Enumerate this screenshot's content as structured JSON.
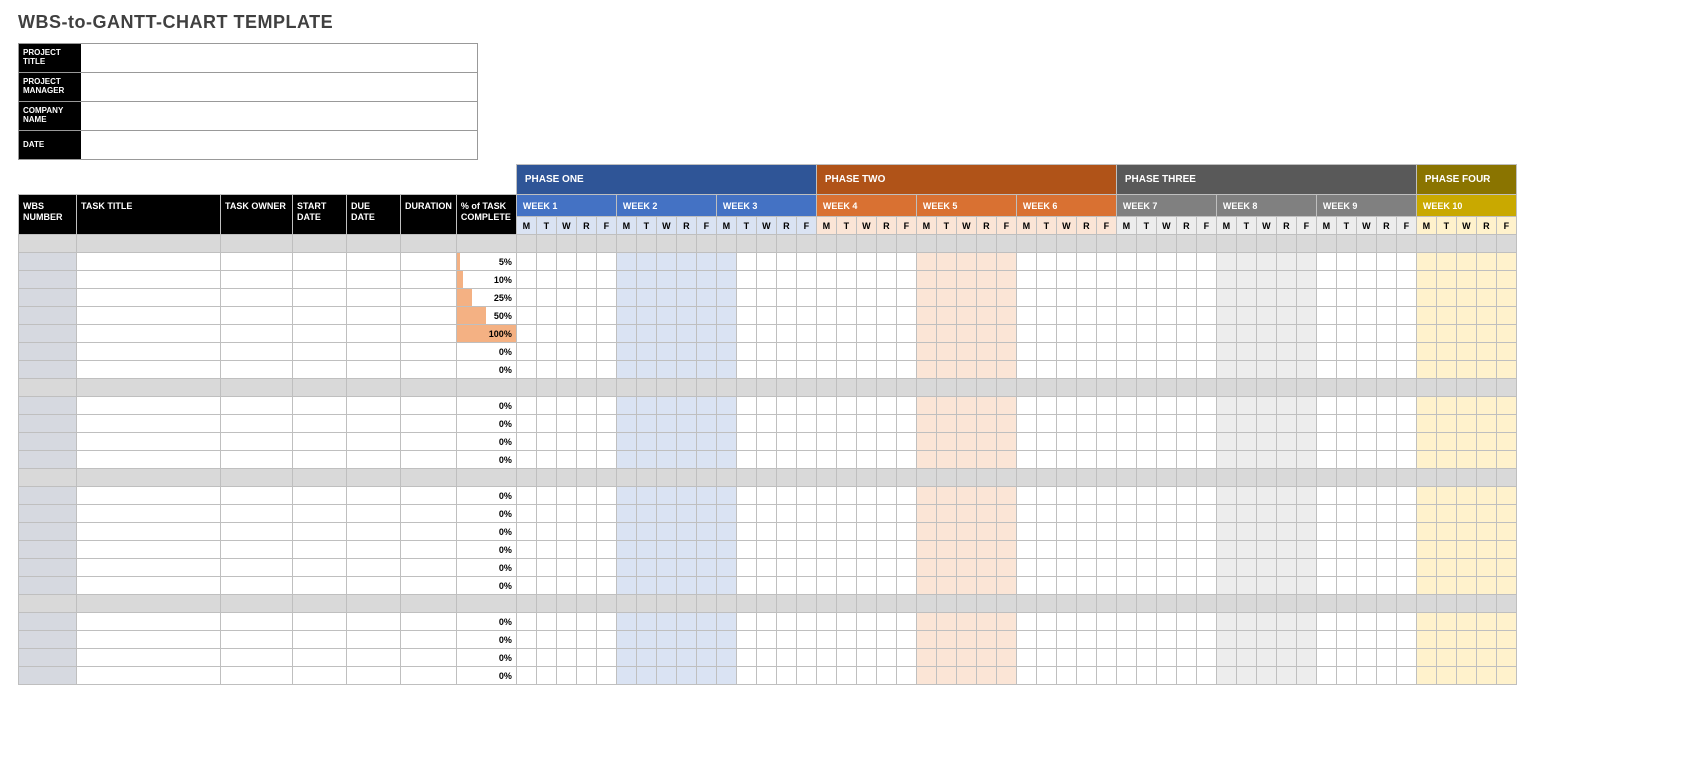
{
  "title": "WBS-to-GANTT-CHART TEMPLATE",
  "meta_labels": {
    "project_title": "PROJECT TITLE",
    "project_manager": "PROJECT MANAGER",
    "company_name": "COMPANY NAME",
    "date": "DATE"
  },
  "meta_values": {
    "project_title": "",
    "project_manager": "",
    "company_name": "",
    "date": ""
  },
  "columns": {
    "wbs": "WBS NUMBER",
    "task_title": "TASK TITLE",
    "task_owner": "TASK OWNER",
    "start_date": "START DATE",
    "due_date": "DUE DATE",
    "duration": "DURATION",
    "pct": "% of TASK COMPLETE"
  },
  "phases": [
    {
      "label": "PHASE ONE",
      "bg": "#2f5597",
      "weeks": [
        {
          "label": "WEEK 1",
          "bg": "#4472c4",
          "day_bg": "#dae3f3",
          "shade": []
        },
        {
          "label": "WEEK 2",
          "bg": "#4472c4",
          "day_bg": "#dae3f3",
          "shade": [
            0,
            1,
            2,
            3,
            4
          ]
        },
        {
          "label": "WEEK 3",
          "bg": "#4472c4",
          "day_bg": "#dae3f3",
          "shade": [
            0
          ]
        }
      ]
    },
    {
      "label": "PHASE TWO",
      "bg": "#b05318",
      "weeks": [
        {
          "label": "WEEK 4",
          "bg": "#d97132",
          "day_bg": "#fbe5d6",
          "shade": []
        },
        {
          "label": "WEEK 5",
          "bg": "#d97132",
          "day_bg": "#fbe5d6",
          "shade": [
            0,
            1,
            2,
            3,
            4
          ]
        },
        {
          "label": "WEEK 6",
          "bg": "#d97132",
          "day_bg": "#fbe5d6",
          "shade": []
        }
      ]
    },
    {
      "label": "PHASE THREE",
      "bg": "#595959",
      "weeks": [
        {
          "label": "WEEK 7",
          "bg": "#808080",
          "day_bg": "#ededed",
          "shade": []
        },
        {
          "label": "WEEK 8",
          "bg": "#808080",
          "day_bg": "#ededed",
          "shade": [
            0,
            1,
            2,
            3,
            4
          ]
        },
        {
          "label": "WEEK 9",
          "bg": "#808080",
          "day_bg": "#ededed",
          "shade": []
        }
      ]
    },
    {
      "label": "PHASE FOUR",
      "bg": "#8a7400",
      "weeks": [
        {
          "label": "WEEK 10",
          "bg": "#c9a900",
          "day_bg": "#fff2cc",
          "shade": [
            0,
            1,
            2,
            3,
            4
          ]
        }
      ]
    }
  ],
  "days": [
    "M",
    "T",
    "W",
    "R",
    "F"
  ],
  "rows": [
    {
      "type": "group"
    },
    {
      "type": "task",
      "pct": 5
    },
    {
      "type": "task",
      "pct": 10
    },
    {
      "type": "task",
      "pct": 25
    },
    {
      "type": "task",
      "pct": 50
    },
    {
      "type": "task",
      "pct": 100
    },
    {
      "type": "task",
      "pct": 0
    },
    {
      "type": "task",
      "pct": 0
    },
    {
      "type": "group"
    },
    {
      "type": "task",
      "pct": 0
    },
    {
      "type": "task",
      "pct": 0
    },
    {
      "type": "task",
      "pct": 0
    },
    {
      "type": "task",
      "pct": 0
    },
    {
      "type": "group"
    },
    {
      "type": "task",
      "pct": 0
    },
    {
      "type": "task",
      "pct": 0
    },
    {
      "type": "task",
      "pct": 0
    },
    {
      "type": "task",
      "pct": 0
    },
    {
      "type": "task",
      "pct": 0
    },
    {
      "type": "task",
      "pct": 0
    },
    {
      "type": "group"
    },
    {
      "type": "task",
      "pct": 0
    },
    {
      "type": "task",
      "pct": 0
    },
    {
      "type": "task",
      "pct": 0
    },
    {
      "type": "task",
      "pct": 0
    }
  ],
  "colors": {
    "group_row": "#d9d9d9",
    "wbs_col": "#d6d9e0",
    "pct_bar": "#f4b183",
    "border": "#bfbfbf"
  }
}
